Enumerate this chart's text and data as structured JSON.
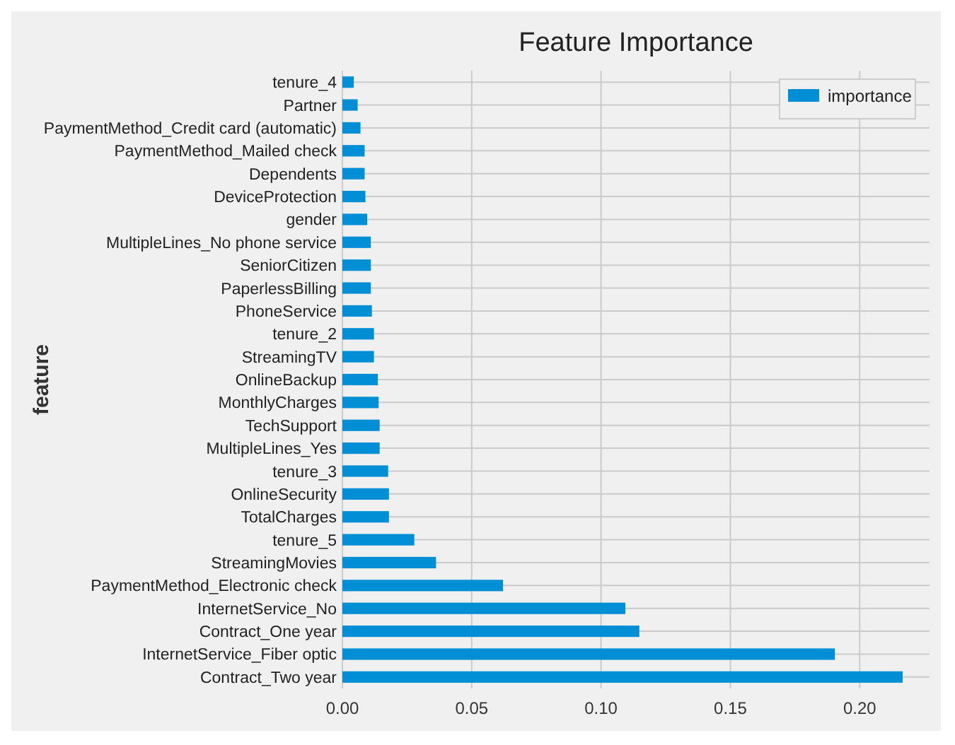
{
  "chart_data": {
    "type": "bar",
    "orientation": "horizontal",
    "title": "Feature Importance",
    "ylabel": "feature",
    "categories": [
      "tenure_4",
      "Partner",
      "PaymentMethod_Credit card (automatic)",
      "PaymentMethod_Mailed check",
      "Dependents",
      "DeviceProtection",
      "gender",
      "MultipleLines_No phone service",
      "SeniorCitizen",
      "PaperlessBilling",
      "PhoneService",
      "tenure_2",
      "StreamingTV",
      "OnlineBackup",
      "MonthlyCharges",
      "TechSupport",
      "MultipleLines_Yes",
      "tenure_3",
      "OnlineSecurity",
      "TotalCharges",
      "tenure_5",
      "StreamingMovies",
      "PaymentMethod_Electronic check",
      "InternetService_No",
      "Contract_One year",
      "InternetService_Fiber optic",
      "Contract_Two year"
    ],
    "series": [
      {
        "name": "importance",
        "color": "#008fd5",
        "values": [
          0.0044,
          0.0059,
          0.007,
          0.0086,
          0.0086,
          0.0089,
          0.0096,
          0.011,
          0.011,
          0.011,
          0.0114,
          0.0122,
          0.0122,
          0.0137,
          0.014,
          0.0144,
          0.0144,
          0.0177,
          0.018,
          0.018,
          0.0278,
          0.0362,
          0.0621,
          0.1094,
          0.1148,
          0.1904,
          0.2166
        ]
      }
    ],
    "xlim": [
      0,
      0.227
    ],
    "xticks": [
      {
        "value": 0,
        "label": "0.00"
      },
      {
        "value": 0.05,
        "label": "0.05"
      },
      {
        "value": 0.1,
        "label": "0.10"
      },
      {
        "value": 0.15,
        "label": "0.15"
      },
      {
        "value": 0.2,
        "label": "0.20"
      }
    ],
    "grid": true,
    "legend": "top right"
  }
}
